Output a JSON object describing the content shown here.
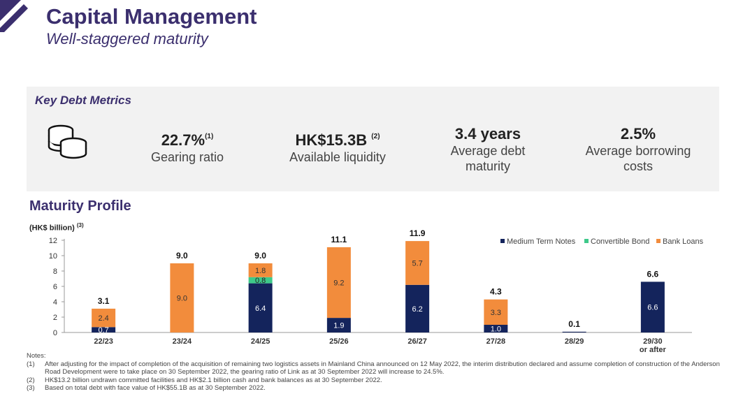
{
  "header": {
    "title": "Capital Management",
    "subtitle": "Well-staggered maturity"
  },
  "metrics": {
    "heading": "Key Debt Metrics",
    "icon": "coins-icon",
    "items": [
      {
        "value": "22.7%",
        "sup": "(1)",
        "label": "Gearing ratio"
      },
      {
        "value": "HK$15.3B",
        "sup": "(2)",
        "label": "Available liquidity"
      },
      {
        "value": "3.4 years",
        "sup": "",
        "label": "Average debt maturity"
      },
      {
        "value": "2.5%",
        "sup": "",
        "label": "Average borrowing costs"
      }
    ]
  },
  "maturity": {
    "title": "Maturity Profile",
    "unit": "(HK$ billion)",
    "unit_sup": "(3)"
  },
  "chart_data": {
    "type": "bar",
    "stacked": true,
    "categories": [
      "22/23",
      "23/24",
      "24/25",
      "25/26",
      "26/27",
      "27/28",
      "28/29",
      "29/30 or after"
    ],
    "series": [
      {
        "name": "Medium Term Notes",
        "color": "#14245c",
        "values": [
          0.7,
          0,
          6.4,
          1.9,
          6.2,
          1.0,
          0.1,
          6.6
        ]
      },
      {
        "name": "Convertible Bond",
        "color": "#3ec98a",
        "values": [
          0,
          0,
          0.8,
          0,
          0,
          0,
          0,
          0
        ]
      },
      {
        "name": "Bank Loans",
        "color": "#f28c3c",
        "values": [
          2.4,
          9.0,
          1.8,
          9.2,
          5.7,
          3.3,
          0,
          0
        ]
      }
    ],
    "segment_labels": [
      [
        "0.7",
        "",
        "6.4",
        "1.9",
        "6.2",
        "1.0",
        "",
        "6.6"
      ],
      [
        "",
        "",
        "0.8",
        "",
        "",
        "",
        "",
        ""
      ],
      [
        "2.4",
        "9.0",
        "1.8",
        "9.2",
        "5.7",
        "3.3",
        "",
        ""
      ]
    ],
    "totals": [
      "3.1",
      "9.0",
      "9.0",
      "11.1",
      "11.9",
      "4.3",
      "0.1",
      "6.6"
    ],
    "yticks": [
      0,
      2,
      4,
      6,
      8,
      10,
      12
    ],
    "ylim": [
      0,
      12
    ],
    "legend_position": "top-right",
    "grid": false
  },
  "notes": {
    "heading": "Notes:",
    "items": [
      {
        "num": "(1)",
        "text": "After adjusting for the impact of completion of the acquisition of remaining two logistics assets in Mainland China announced on 12 May 2022, the interim distribution declared and assume completion of construction of the Anderson Road Development were to take place on 30 September 2022, the gearing ratio of Link as at 30 September 2022 will increase to 24.5%."
      },
      {
        "num": "(2)",
        "text": "HK$13.2 billion undrawn committed facilities and HK$2.1 billion cash and bank balances as at 30 September 2022."
      },
      {
        "num": "(3)",
        "text": "Based on total debt with face value of HK$55.1B as at 30 September 2022."
      }
    ]
  }
}
